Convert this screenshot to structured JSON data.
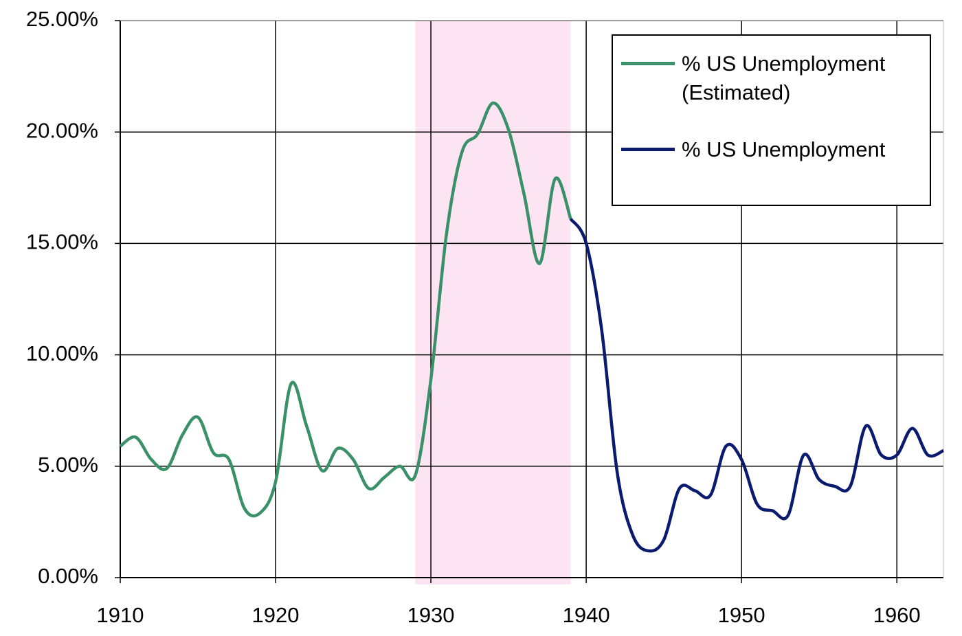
{
  "chart_data": {
    "type": "line",
    "ylim": [
      0,
      25
    ],
    "yticks": [
      {
        "value": 0,
        "label": "0.00%"
      },
      {
        "value": 5,
        "label": "5.00%"
      },
      {
        "value": 10,
        "label": "10.00%"
      },
      {
        "value": 15,
        "label": "15.00%"
      },
      {
        "value": 20,
        "label": "20.00%"
      },
      {
        "value": 25,
        "label": "25.00%"
      }
    ],
    "xlim": [
      1910,
      1963
    ],
    "xticks": [
      1910,
      1920,
      1930,
      1940,
      1950,
      1960
    ],
    "grid": true,
    "shade": {
      "range": [
        1929,
        1939
      ],
      "color": "#fce4f2"
    },
    "legend": "upper right",
    "series": [
      {
        "name": "% US Unemployment (Estimated)",
        "color": "#3a9068",
        "x": [
          1910,
          1911,
          1912,
          1913,
          1914,
          1915,
          1916,
          1917,
          1918,
          1919,
          1920,
          1921,
          1922,
          1923,
          1924,
          1925,
          1926,
          1927,
          1928,
          1929,
          1930,
          1931,
          1932,
          1933,
          1934,
          1935,
          1936,
          1937,
          1938,
          1939
        ],
        "values": [
          5.9,
          6.3,
          5.3,
          4.9,
          6.4,
          7.2,
          5.6,
          5.3,
          3.1,
          2.9,
          4.3,
          8.7,
          6.8,
          4.8,
          5.8,
          5.3,
          4.0,
          4.5,
          5.0,
          4.6,
          8.9,
          15.4,
          19.1,
          19.9,
          21.3,
          20.1,
          17.2,
          14.1,
          17.9,
          16.1
        ]
      },
      {
        "name": "% US Unemployment",
        "color": "#0a1a6e",
        "x": [
          1939,
          1940,
          1941,
          1942,
          1943,
          1944,
          1945,
          1946,
          1947,
          1948,
          1949,
          1950,
          1951,
          1952,
          1953,
          1954,
          1955,
          1956,
          1957,
          1958,
          1959,
          1960,
          1961,
          1962,
          1963
        ],
        "values": [
          16.1,
          15.0,
          11.1,
          4.7,
          1.9,
          1.2,
          1.7,
          4.0,
          3.9,
          3.7,
          5.9,
          5.3,
          3.3,
          3.0,
          2.8,
          5.5,
          4.4,
          4.1,
          4.1,
          6.8,
          5.5,
          5.5,
          6.7,
          5.5,
          5.7
        ]
      }
    ]
  }
}
